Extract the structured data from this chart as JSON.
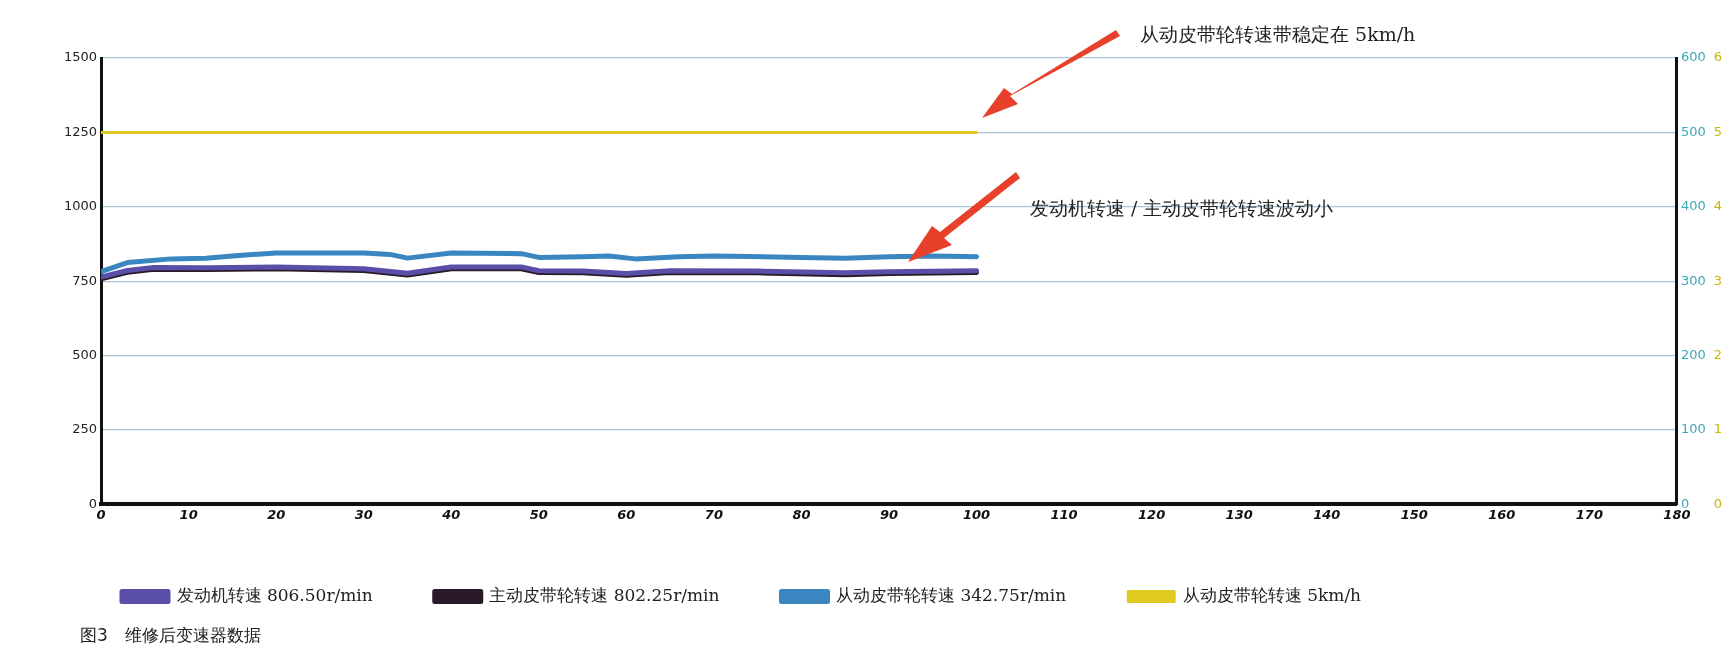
{
  "chart_data": {
    "type": "line",
    "annotations": [
      "从动皮带轮转速带稳定在 5km/h",
      "发动机转速 / 主动皮带轮转速波动小",
      "图3　维修后变速器数据"
    ],
    "xlim": [
      0,
      180
    ],
    "xticks": [
      0,
      10,
      20,
      30,
      40,
      50,
      60,
      70,
      80,
      90,
      100,
      110,
      120,
      130,
      140,
      150,
      160,
      170,
      180
    ],
    "ylim": [
      0,
      1500
    ],
    "yticks": [
      0,
      250,
      500,
      750,
      1000,
      1250,
      1500
    ],
    "y2lim": [
      0,
      600
    ],
    "y2ticks": [
      0,
      100,
      200,
      300,
      400,
      500,
      600
    ],
    "y3lim": [
      0,
      6
    ],
    "y3ticks": [
      0,
      1,
      2,
      3,
      4,
      5,
      6
    ],
    "grid": "y",
    "legend": "bottom",
    "marker": "none",
    "line_style": "solid",
    "series": [
      {
        "name": "发动机转速 806.50r/min",
        "color": "#5a4fa8",
        "axis": "y",
        "x": [
          0,
          3,
          6,
          12,
          20,
          30,
          35,
          40,
          48,
          50,
          55,
          60,
          65,
          75,
          85,
          90,
          100
        ],
        "values": [
          764,
          786,
          796,
          795,
          798,
          792,
          777,
          798,
          798,
          785,
          784,
          776,
          785,
          784,
          778,
          782,
          785
        ]
      },
      {
        "name": "主动皮带轮转速 802.25r/min",
        "color": "#2a1a28",
        "axis": "y",
        "x": [
          0,
          3,
          6,
          12,
          20,
          30,
          35,
          40,
          48,
          50,
          55,
          60,
          65,
          75,
          85,
          90,
          100
        ],
        "values": [
          758,
          780,
          790,
          789,
          792,
          786,
          771,
          792,
          792,
          779,
          778,
          770,
          779,
          778,
          772,
          776,
          779
        ]
      },
      {
        "name": "从动皮带轮转速 342.75r/min",
        "color": "#3a86c0",
        "axis": "y2",
        "x": [
          0,
          3,
          8,
          12,
          15,
          20,
          30,
          33,
          35,
          40,
          48,
          50,
          55,
          58,
          61,
          66,
          70,
          80,
          85,
          90,
          95,
          100
        ],
        "values": [
          313,
          325,
          330,
          331,
          334,
          338,
          338,
          336,
          331,
          338,
          337,
          332,
          333,
          334,
          330,
          333,
          334,
          332,
          331,
          333,
          334,
          333
        ]
      },
      {
        "name": "从动皮带轮转速 5km/h",
        "color": "#e0cc20",
        "axis": "y3",
        "x": [
          0,
          100
        ],
        "values": [
          5,
          5
        ]
      }
    ]
  }
}
